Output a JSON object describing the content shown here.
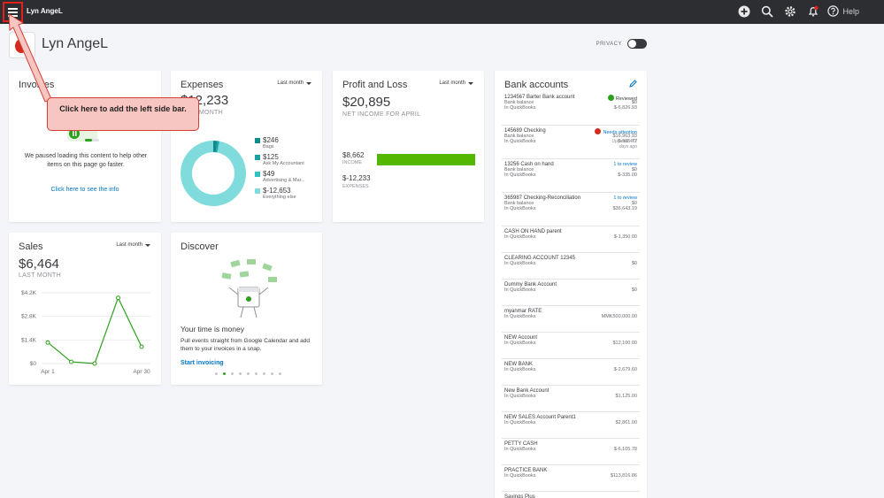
{
  "topbar": {
    "company": "Lyn AngeL",
    "help_label": "Help",
    "icons": [
      "menu-icon",
      "plus-icon",
      "search-icon",
      "gear-icon",
      "bell-icon",
      "help-icon"
    ]
  },
  "header": {
    "title": "Lyn AngeL",
    "privacy_label": "PRIVACY"
  },
  "callout": {
    "text": "Click here to add the left side bar."
  },
  "invoices": {
    "title": "Invoices",
    "message": "We paused loading this content to help other items on this page go faster.",
    "link": "Click here to see the info"
  },
  "expenses": {
    "title": "Expenses",
    "period": "Last month",
    "amount": "$12,233",
    "subtitle": "LAST MONTH",
    "legend": [
      {
        "value": "$246",
        "category": "Bags",
        "color": "#0f8b8d"
      },
      {
        "value": "$125",
        "category": "Ask My Accountant",
        "color": "#1aa1a3"
      },
      {
        "value": "$49",
        "category": "Advertising & Mar...",
        "color": "#31c2c4"
      },
      {
        "value": "$-12,653",
        "category": "Everything else",
        "color": "#7fdbdc"
      }
    ]
  },
  "profit_loss": {
    "title": "Profit and Loss",
    "period": "Last month",
    "amount": "$20,895",
    "subtitle": "NET INCOME FOR APRIL",
    "income_value": "$8,662",
    "income_label": "INCOME",
    "expenses_value": "$-12,233",
    "expenses_label": "EXPENSES",
    "income_color": "#53b700"
  },
  "bank": {
    "title": "Bank accounts",
    "accounts": [
      {
        "name": "1234567 Barter Bank account",
        "status": "Reviewed",
        "lines": [
          [
            "Bank balance",
            "$0"
          ],
          [
            "In QuickBooks",
            "$-6,826.93"
          ]
        ]
      },
      {
        "name": "145689 Checking",
        "status": "Needs attention",
        "lines": [
          [
            "Bank balance",
            "$16,963.93"
          ],
          [
            "In QuickBooks",
            "$-985.77"
          ]
        ],
        "note": "Updated 402 days ago"
      },
      {
        "name": "13256 Cash on hand",
        "status": "1 to review",
        "lines": [
          [
            "Bank balance",
            "$0"
          ],
          [
            "In QuickBooks",
            "$-335.00"
          ]
        ]
      },
      {
        "name": "365987 Checking-Reconciliation",
        "status": "1 to review",
        "lines": [
          [
            "Bank balance",
            "$0"
          ],
          [
            "In QuickBooks",
            "$36,643.19"
          ]
        ]
      },
      {
        "name": "CASH ON HAND parent",
        "status": "",
        "lines": [
          [
            "In QuickBooks",
            "$-1,350.00"
          ]
        ]
      },
      {
        "name": "CLEARING ACCOUNT 12345",
        "status": "",
        "lines": [
          [
            "In QuickBooks",
            "$0"
          ]
        ]
      },
      {
        "name": "Dummy Bank Account",
        "status": "",
        "lines": [
          [
            "In QuickBooks",
            "$0"
          ]
        ]
      },
      {
        "name": "myanmar RATE",
        "status": "",
        "lines": [
          [
            "In QuickBooks",
            "MMK500,000.00"
          ]
        ]
      },
      {
        "name": "NEW Account",
        "status": "",
        "lines": [
          [
            "In QuickBooks",
            "$12,100.00"
          ]
        ]
      },
      {
        "name": "NEW BANK",
        "status": "",
        "lines": [
          [
            "In QuickBooks",
            "$-2,679.60"
          ]
        ]
      },
      {
        "name": "New Bank Account",
        "status": "",
        "lines": [
          [
            "In QuickBooks",
            "$1,125.00"
          ]
        ]
      },
      {
        "name": "NEW SALES Account Parent1",
        "status": "",
        "lines": [
          [
            "In QuickBooks",
            "$2,861.00"
          ]
        ]
      },
      {
        "name": "PETTY CASH",
        "status": "",
        "lines": [
          [
            "In QuickBooks",
            "$-6,105.78"
          ]
        ]
      },
      {
        "name": "PRACTICE BANK",
        "status": "",
        "lines": [
          [
            "In QuickBooks",
            "$113,816.86"
          ]
        ]
      },
      {
        "name": "Savings Plus",
        "status": "",
        "lines": []
      }
    ]
  },
  "sales": {
    "title": "Sales",
    "period": "Last month",
    "amount": "$6,464",
    "subtitle": "LAST MONTH",
    "line_color": "#2ca01c"
  },
  "discover": {
    "title": "Discover",
    "heading": "Your time is money",
    "text": "Pull events straight from Google Calendar and add them to your invoices in a snap.",
    "link": "Start invoicing"
  },
  "chart_data": [
    {
      "type": "pie",
      "title": "Expenses",
      "categories": [
        "Bags",
        "Ask My Accountant",
        "Advertising & Mar...",
        "Everything else"
      ],
      "values": [
        246,
        125,
        49,
        -12653
      ],
      "colors": [
        "#0f8b8d",
        "#1aa1a3",
        "#31c2c4",
        "#7fdbdc"
      ]
    },
    {
      "type": "line",
      "title": "Sales",
      "x": [
        "Apr 1",
        "",
        "",
        "",
        "Apr 30"
      ],
      "series": [
        {
          "values": [
            1250,
            100,
            0,
            3900,
            1000
          ]
        }
      ],
      "y_ticks": [
        "$0",
        "$1.4K",
        "$2.8K",
        "$4.2K"
      ],
      "x_ticks": [
        "Apr 1",
        "Apr 30"
      ],
      "ylim": [
        0,
        4200
      ]
    }
  ]
}
